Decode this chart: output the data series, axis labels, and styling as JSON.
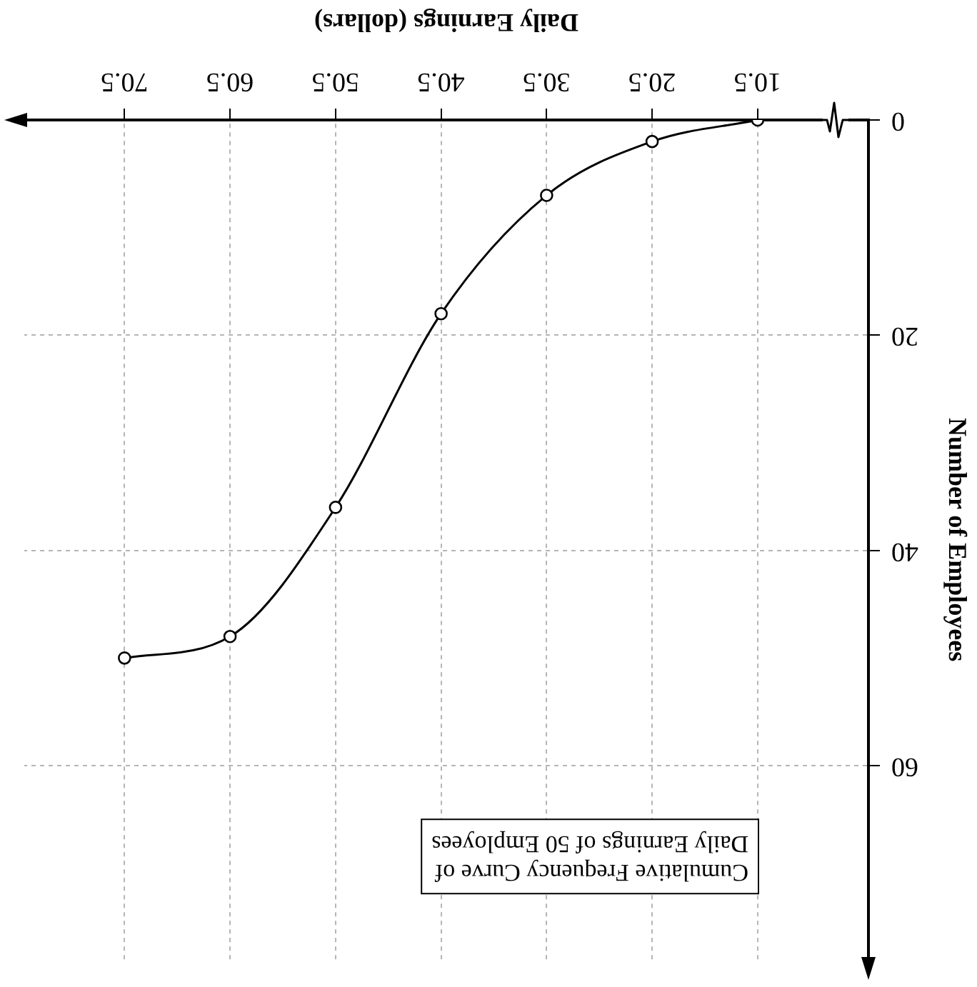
{
  "chart_data": {
    "type": "line",
    "title": "Cumulative Frequency Curve of\nDaily Earnings of 50 Employees",
    "xlabel": "Daily Earnings (dollars)",
    "ylabel": "Number of Employees",
    "x": [
      10.5,
      20.5,
      30.5,
      40.5,
      50.5,
      60.5,
      70.5
    ],
    "series": [
      {
        "color": "#000000",
        "values": [
          0,
          2,
          7,
          18,
          36,
          48,
          50
        ]
      }
    ],
    "xlim": [
      80,
      0
    ],
    "xticks": [
      10.5,
      20.5,
      30.5,
      40.5,
      50.5,
      60.5,
      70.5
    ],
    "ylim": [
      78,
      0
    ],
    "yticks": [
      0,
      20,
      40,
      60
    ],
    "grid": true,
    "marker": "circle",
    "line_style": "solid",
    "legend": false
  }
}
